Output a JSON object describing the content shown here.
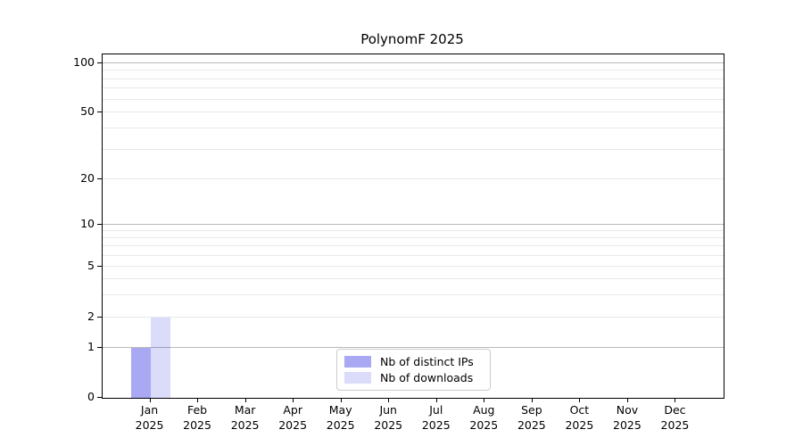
{
  "figure": {
    "title": "PolynomF 2025"
  },
  "chart_data": {
    "type": "bar",
    "title": "PolynomF 2025",
    "categories": [
      "Jan",
      "Feb",
      "Mar",
      "Apr",
      "May",
      "Jun",
      "Jul",
      "Aug",
      "Sep",
      "Oct",
      "Nov",
      "Dec"
    ],
    "category_year": "2025",
    "series": [
      {
        "name": "Nb of distinct IPs",
        "color": "#a8a8f3",
        "values": [
          1,
          0,
          0,
          0,
          0,
          0,
          0,
          0,
          0,
          0,
          0,
          0
        ]
      },
      {
        "name": "Nb of downloads",
        "color": "#dbdbfa",
        "values": [
          2,
          0,
          0,
          0,
          0,
          0,
          0,
          0,
          0,
          0,
          0,
          0
        ]
      }
    ],
    "xlabel": "",
    "ylabel": "",
    "yscale": "symlog-like",
    "ylim": [
      0,
      100
    ],
    "yticks": [
      0,
      1,
      2,
      5,
      10,
      20,
      50,
      100
    ],
    "major_gridlines": [
      1,
      10,
      100
    ],
    "minor_gridlines": [
      2,
      3,
      4,
      5,
      6,
      7,
      8,
      9,
      20,
      30,
      40,
      50,
      60,
      70,
      80,
      90
    ],
    "grid": true,
    "legend_position": "lower center"
  },
  "legend": {
    "items": [
      {
        "label": "Nb of distinct IPs",
        "color": "#a8a8f3"
      },
      {
        "label": "Nb of downloads",
        "color": "#dbdbfa"
      }
    ]
  }
}
